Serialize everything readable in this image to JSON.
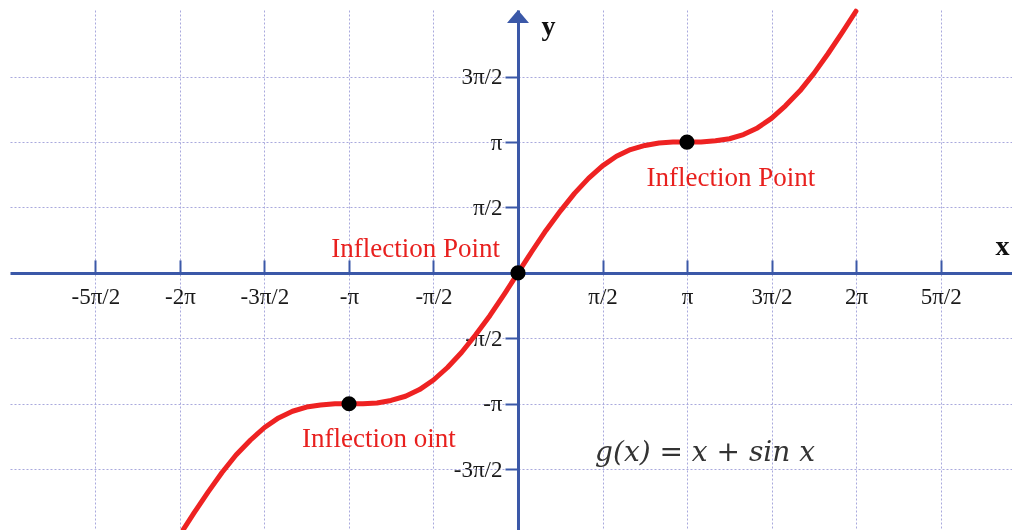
{
  "chart_data": {
    "type": "line",
    "xlabel": "x",
    "ylabel": "y",
    "annotations": [
      {
        "text": "Inflection Point",
        "x": 3.14,
        "y": 3.14
      },
      {
        "text": "Inflection Point",
        "x": 0,
        "y": 0
      },
      {
        "text": "Inflection oint",
        "x": -3.14,
        "y": -3.14
      },
      "g(x) = x + sin x"
    ],
    "series": [
      {
        "color": "#ee2222",
        "x": [
          -6.22,
          -6.02,
          -5.76,
          -5.5,
          -5.24,
          -4.97,
          -4.71,
          -4.45,
          -4.19,
          -3.93,
          -3.67,
          -3.4,
          -3.14,
          -2.88,
          -2.62,
          -2.36,
          -2.09,
          -1.83,
          -1.57,
          -1.31,
          -1.05,
          -0.79,
          -0.52,
          -0.26,
          0,
          0.26,
          0.52,
          0.79,
          1.05,
          1.31,
          1.57,
          1.83,
          2.09,
          2.36,
          2.62,
          2.88,
          3.14,
          3.4,
          3.67,
          3.93,
          4.19,
          4.45,
          4.71,
          4.97,
          5.24,
          5.5,
          5.76,
          6.02,
          6.28
        ],
        "values": [
          -6.16,
          -5.76,
          -5.26,
          -4.79,
          -4.37,
          -4.01,
          -3.71,
          -3.48,
          -3.32,
          -3.22,
          -3.17,
          -3.14,
          -3.14,
          -3.14,
          -3.12,
          -3.06,
          -2.96,
          -2.8,
          -2.57,
          -2.27,
          -1.91,
          -1.49,
          -1.02,
          -0.52,
          0,
          0.52,
          1.02,
          1.49,
          1.91,
          2.27,
          2.57,
          2.8,
          2.96,
          3.06,
          3.12,
          3.14,
          3.14,
          3.14,
          3.17,
          3.22,
          3.32,
          3.48,
          3.71,
          4.01,
          4.37,
          4.79,
          5.26,
          5.76,
          6.28
        ]
      },
      {
        "type": "scatter",
        "color": "#000000",
        "marker": "circle",
        "x": [
          -3.14,
          0,
          3.14
        ],
        "values": [
          -3.14,
          0,
          3.14
        ]
      }
    ],
    "xlim": [
      -9.44,
      9.18
    ],
    "ylim": [
      -6.17,
      6.31
    ],
    "xticks": [
      {
        "value": -7.854,
        "label": "-5π/2"
      },
      {
        "value": -6.283,
        "label": "-2π"
      },
      {
        "value": -4.712,
        "label": "-3π/2"
      },
      {
        "value": -3.142,
        "label": "-π"
      },
      {
        "value": -1.571,
        "label": "-π/2"
      },
      {
        "value": 1.571,
        "label": "π/2"
      },
      {
        "value": 3.142,
        "label": "π"
      },
      {
        "value": 4.712,
        "label": "3π/2"
      },
      {
        "value": 6.283,
        "label": "2π"
      },
      {
        "value": 7.854,
        "label": "5π/2"
      }
    ],
    "yticks": [
      {
        "value": -4.712,
        "label": "-3π/2"
      },
      {
        "value": -3.142,
        "label": "-π"
      },
      {
        "value": -1.571,
        "label": "-π/2"
      },
      {
        "value": 1.571,
        "label": "π/2"
      },
      {
        "value": 3.142,
        "label": "π"
      },
      {
        "value": 4.712,
        "label": "3π/2"
      }
    ],
    "grid": true
  }
}
